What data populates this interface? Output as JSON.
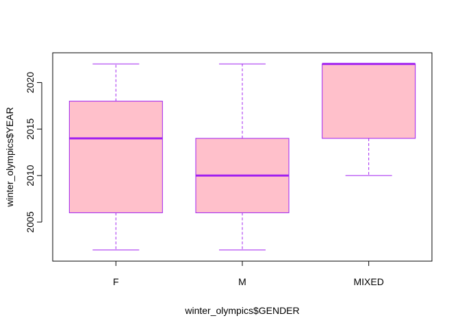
{
  "chart_data": {
    "type": "boxplot",
    "title": "",
    "xlabel": "winter_olympics$GENDER",
    "ylabel": "winter_olympics$YEAR",
    "ylim": [
      2000.8,
      2023.2
    ],
    "yticks": [
      2005,
      2010,
      2015,
      2020
    ],
    "grid": false,
    "categories": [
      "F",
      "M",
      "MIXED"
    ],
    "boxes": [
      {
        "category": "F",
        "whisker_low": 2002,
        "q1": 2006,
        "median": 2014,
        "q3": 2018,
        "whisker_high": 2022
      },
      {
        "category": "M",
        "whisker_low": 2002,
        "q1": 2006,
        "median": 2010,
        "q3": 2014,
        "whisker_high": 2022
      },
      {
        "category": "MIXED",
        "whisker_low": 2010,
        "q1": 2014,
        "median": 2022,
        "q3": 2022,
        "whisker_high": 2022
      }
    ],
    "colors": {
      "box_fill": "#FFC0CB",
      "border": "#A020F0"
    }
  }
}
